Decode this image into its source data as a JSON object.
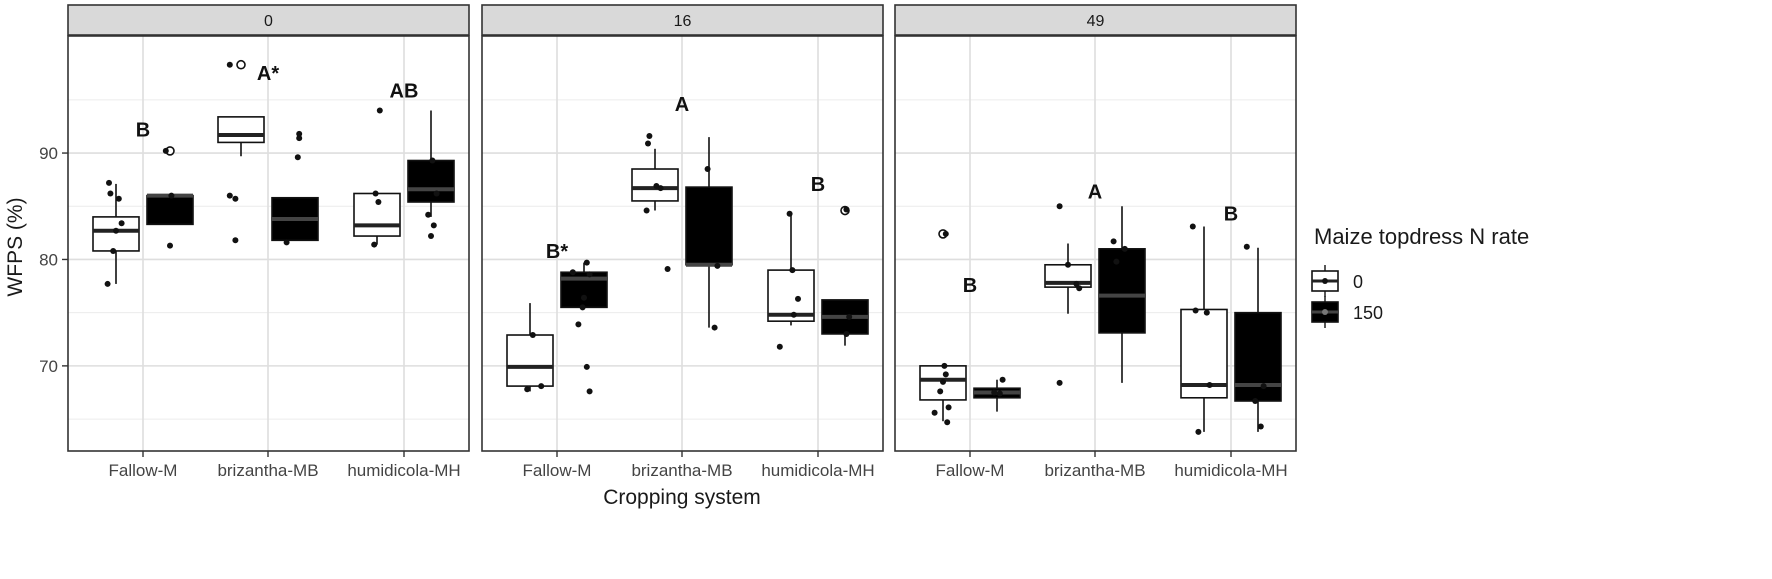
{
  "chart_data": {
    "type": "boxplot",
    "ylabel": "WFPS (%)",
    "xlabel": "Cropping system",
    "ylim": [
      62,
      101
    ],
    "yticks": [
      70,
      80,
      90
    ],
    "categories": [
      "Fallow-M",
      "brizantha-MB",
      "humidicola-MH"
    ],
    "legend": {
      "title": "Maize topdress N rate",
      "placement": "right",
      "entries": [
        {
          "label": "0",
          "fill": "#ffffff"
        },
        {
          "label": "150",
          "fill": "#000000"
        }
      ]
    },
    "panels": [
      {
        "strip": "0",
        "groups": [
          {
            "category": "Fallow-M",
            "rate": "0",
            "q1": 80.8,
            "median": 82.7,
            "q3": 84.0,
            "wlo": 77.7,
            "whi": 87.1,
            "outliers": [],
            "points": [
              [
                -0.3,
                77.7
              ],
              [
                -0.1,
                80.8
              ],
              [
                0.0,
                82.7
              ],
              [
                0.2,
                83.4
              ],
              [
                0.1,
                85.7
              ],
              [
                -0.2,
                86.2
              ],
              [
                -0.25,
                87.2
              ]
            ]
          },
          {
            "category": "Fallow-M",
            "rate": "150",
            "q1": 83.3,
            "median": 86.0,
            "q3": 86.0,
            "wlo": 83.3,
            "whi": 86.0,
            "outliers": [
              90.2
            ],
            "points": [
              [
                -0.15,
                90.2
              ],
              [
                0.0,
                81.3
              ],
              [
                0.05,
                86.0
              ]
            ]
          },
          {
            "category": "brizantha-MB",
            "rate": "0",
            "q1": 91.0,
            "median": 91.7,
            "q3": 93.4,
            "wlo": 89.7,
            "whi": 93.4,
            "outliers": [
              98.3
            ],
            "points": [
              [
                -0.4,
                98.3
              ],
              [
                -0.4,
                86.0
              ],
              [
                -0.2,
                81.8
              ],
              [
                -0.2,
                85.7
              ]
            ]
          },
          {
            "category": "brizantha-MB",
            "rate": "150",
            "q1": 81.8,
            "median": 83.8,
            "q3": 85.8,
            "wlo": 81.8,
            "whi": 85.8,
            "outliers": [],
            "points": [
              [
                -0.3,
                81.6
              ],
              [
                0.1,
                89.6
              ],
              [
                0.15,
                91.4
              ],
              [
                0.15,
                91.8
              ]
            ]
          },
          {
            "category": "humidicola-MH",
            "rate": "0",
            "q1": 82.2,
            "median": 83.2,
            "q3": 86.2,
            "wlo": 81.4,
            "whi": 86.2,
            "outliers": [],
            "points": [
              [
                -0.1,
                81.4
              ],
              [
                -0.05,
                86.2
              ],
              [
                0.05,
                85.4
              ],
              [
                0.1,
                94.0
              ]
            ]
          },
          {
            "category": "humidicola-MH",
            "rate": "150",
            "q1": 85.4,
            "median": 86.6,
            "q3": 89.3,
            "wlo": 84.0,
            "whi": 94.0,
            "outliers": [],
            "points": [
              [
                0.0,
                82.2
              ],
              [
                0.1,
                83.2
              ],
              [
                -0.1,
                84.2
              ],
              [
                0.2,
                86.2
              ],
              [
                0.05,
                89.3
              ]
            ]
          }
        ],
        "letters": [
          {
            "category": "Fallow-M",
            "text": "B",
            "y": 92.2
          },
          {
            "category": "brizantha-MB",
            "text": "A*",
            "y": 97.5
          },
          {
            "category": "humidicola-MH",
            "text": "AB",
            "y": 95.9
          }
        ]
      },
      {
        "strip": "16",
        "groups": [
          {
            "category": "Fallow-M",
            "rate": "0",
            "q1": 68.1,
            "median": 69.9,
            "q3": 72.9,
            "wlo": 67.6,
            "whi": 75.9,
            "outliers": [],
            "points": [
              [
                0.1,
                72.9
              ],
              [
                -0.1,
                67.8
              ],
              [
                0.4,
                68.1
              ]
            ]
          },
          {
            "category": "Fallow-M",
            "rate": "150",
            "q1": 75.5,
            "median": 78.2,
            "q3": 78.8,
            "wlo": 75.5,
            "whi": 79.7,
            "outliers": [],
            "points": [
              [
                -0.4,
                78.8
              ],
              [
                -0.2,
                73.9
              ],
              [
                -0.05,
                75.5
              ],
              [
                0.0,
                76.4
              ],
              [
                0.1,
                79.7
              ],
              [
                0.2,
                78.6
              ],
              [
                0.1,
                69.9
              ],
              [
                0.2,
                67.6
              ]
            ]
          },
          {
            "category": "brizantha-MB",
            "rate": "0",
            "q1": 85.5,
            "median": 86.7,
            "q3": 88.5,
            "wlo": 84.6,
            "whi": 90.4,
            "outliers": [],
            "points": [
              [
                -0.3,
                84.6
              ],
              [
                -0.25,
                90.9
              ],
              [
                -0.2,
                91.6
              ],
              [
                0.05,
                86.9
              ],
              [
                0.2,
                86.7
              ],
              [
                0.45,
                79.1
              ]
            ]
          },
          {
            "category": "brizantha-MB",
            "rate": "150",
            "q1": 79.5,
            "median": 79.5,
            "q3": 86.8,
            "wlo": 73.6,
            "whi": 91.5,
            "outliers": [],
            "points": [
              [
                -0.05,
                88.5
              ],
              [
                0.2,
                73.6
              ],
              [
                0.3,
                79.4
              ]
            ]
          },
          {
            "category": "humidicola-MH",
            "rate": "0",
            "q1": 74.2,
            "median": 74.8,
            "q3": 79.0,
            "wlo": 73.8,
            "whi": 84.2,
            "outliers": [],
            "points": [
              [
                -0.4,
                71.8
              ],
              [
                -0.05,
                84.3
              ],
              [
                0.05,
                79.0
              ],
              [
                0.25,
                76.3
              ],
              [
                0.1,
                74.8
              ]
            ]
          },
          {
            "category": "humidicola-MH",
            "rate": "150",
            "q1": 73.0,
            "median": 74.6,
            "q3": 76.2,
            "wlo": 71.9,
            "whi": 76.2,
            "outliers": [
              84.6
            ],
            "points": [
              [
                0.05,
                84.7
              ],
              [
                0.05,
                73.0
              ],
              [
                0.15,
                74.6
              ]
            ]
          }
        ],
        "letters": [
          {
            "category": "Fallow-M",
            "text": "B*",
            "y": 80.8
          },
          {
            "category": "brizantha-MB",
            "text": "A",
            "y": 94.6
          },
          {
            "category": "humidicola-MH",
            "text": "B",
            "y": 87.1
          }
        ]
      },
      {
        "strip": "49",
        "groups": [
          {
            "category": "Fallow-M",
            "rate": "0",
            "q1": 66.8,
            "median": 68.7,
            "q3": 70.0,
            "wlo": 64.8,
            "whi": 70.0,
            "outliers": [
              82.4
            ],
            "points": [
              [
                0.1,
                82.4
              ],
              [
                -0.3,
                65.6
              ],
              [
                -0.1,
                67.6
              ],
              [
                0.0,
                68.5
              ],
              [
                0.05,
                70.0
              ],
              [
                0.1,
                69.2
              ],
              [
                0.15,
                64.7
              ],
              [
                0.2,
                66.1
              ]
            ]
          },
          {
            "category": "Fallow-M",
            "rate": "150",
            "q1": 67.0,
            "median": 67.5,
            "q3": 67.9,
            "wlo": 65.7,
            "whi": 68.7,
            "outliers": [],
            "points": [
              [
                -0.1,
                67.5
              ],
              [
                0.1,
                67.4
              ],
              [
                0.2,
                68.7
              ]
            ]
          },
          {
            "category": "brizantha-MB",
            "rate": "0",
            "q1": 77.4,
            "median": 77.8,
            "q3": 79.5,
            "wlo": 74.9,
            "whi": 81.5,
            "outliers": [],
            "points": [
              [
                -0.3,
                85.0
              ],
              [
                0.0,
                79.5
              ],
              [
                0.3,
                77.7
              ],
              [
                0.4,
                77.3
              ],
              [
                -0.3,
                68.4
              ]
            ]
          },
          {
            "category": "brizantha-MB",
            "rate": "150",
            "q1": 73.1,
            "median": 76.6,
            "q3": 81.0,
            "wlo": 68.4,
            "whi": 85.0,
            "outliers": [],
            "points": [
              [
                -0.3,
                81.7
              ],
              [
                -0.2,
                79.8
              ],
              [
                0.1,
                81.0
              ]
            ]
          },
          {
            "category": "humidicola-MH",
            "rate": "0",
            "q1": 67.0,
            "median": 68.2,
            "q3": 75.3,
            "wlo": 63.8,
            "whi": 83.1,
            "outliers": [],
            "points": [
              [
                -0.4,
                83.1
              ],
              [
                -0.3,
                75.2
              ],
              [
                0.1,
                75.0
              ],
              [
                -0.2,
                63.8
              ],
              [
                0.2,
                68.2
              ]
            ]
          },
          {
            "category": "humidicola-MH",
            "rate": "150",
            "q1": 66.7,
            "median": 68.2,
            "q3": 75.0,
            "wlo": 63.8,
            "whi": 81.1,
            "outliers": [],
            "points": [
              [
                -0.4,
                81.2
              ],
              [
                -0.1,
                66.7
              ],
              [
                0.1,
                64.3
              ],
              [
                0.2,
                68.1
              ]
            ]
          }
        ],
        "letters": [
          {
            "category": "Fallow-M",
            "text": "B",
            "y": 77.6
          },
          {
            "category": "brizantha-MB",
            "text": "A",
            "y": 86.4
          },
          {
            "category": "humidicola-MH",
            "text": "B",
            "y": 84.3
          }
        ]
      }
    ]
  }
}
